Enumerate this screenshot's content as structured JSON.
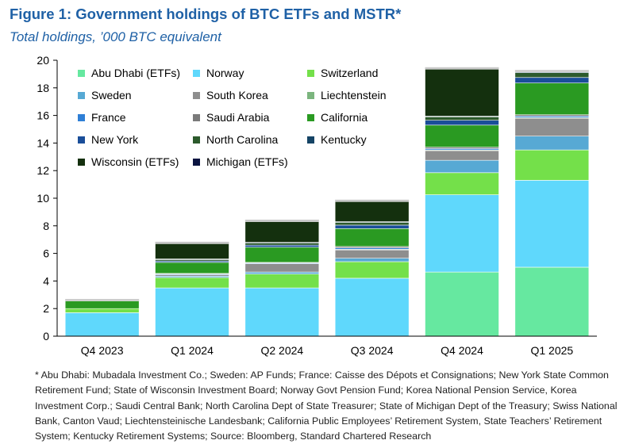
{
  "header": {
    "title": "Figure 1: Government holdings of BTC ETFs and MSTR*",
    "subtitle": "Total holdings, ’000 BTC equivalent"
  },
  "chart_data": {
    "type": "bar",
    "stacked": true,
    "categories": [
      "Q4 2023",
      "Q1 2024",
      "Q2 2024",
      "Q3 2024",
      "Q4 2024",
      "Q1 2025"
    ],
    "ylim": [
      0,
      20
    ],
    "yticks": [
      "0",
      "2",
      "4",
      "6",
      "8",
      "10",
      "12",
      "14",
      "16",
      "18",
      "20"
    ],
    "legend_position": "top-left, inside",
    "grid": false,
    "series": [
      {
        "name": "Abu Dhabi (ETFs)",
        "color": "#66e8a0",
        "values": [
          0,
          0,
          0,
          0,
          4.65,
          5.0
        ]
      },
      {
        "name": "Norway",
        "color": "#5fd8fc",
        "values": [
          1.7,
          3.5,
          3.5,
          4.2,
          5.6,
          6.3
        ]
      },
      {
        "name": "Switzerland",
        "color": "#74e04a",
        "values": [
          0.3,
          0.75,
          1.0,
          1.2,
          1.6,
          2.2
        ]
      },
      {
        "name": "Sweden",
        "color": "#57a9d4",
        "values": [
          0,
          0.1,
          0.15,
          0.25,
          0.9,
          1.0
        ]
      },
      {
        "name": "South Korea",
        "color": "#8e8e8e",
        "values": [
          0,
          0.1,
          0.6,
          0.6,
          0.7,
          1.3
        ]
      },
      {
        "name": "Liechtenstein",
        "color": "#7bb57e",
        "values": [
          0,
          0,
          0,
          0.05,
          0.05,
          0.05
        ]
      },
      {
        "name": "France",
        "color": "#2f7fd6",
        "values": [
          0,
          0.05,
          0.05,
          0.1,
          0.1,
          0.1
        ]
      },
      {
        "name": "Saudi Arabia",
        "color": "#7a7a7a",
        "values": [
          0,
          0.05,
          0.05,
          0.1,
          0.1,
          0.1
        ]
      },
      {
        "name": "California",
        "color": "#2a9a22",
        "values": [
          0.55,
          0.8,
          1.1,
          1.3,
          1.6,
          2.3
        ]
      },
      {
        "name": "New York",
        "color": "#1a4e99",
        "values": [
          0,
          0.1,
          0.15,
          0.25,
          0.35,
          0.4
        ]
      },
      {
        "name": "North Carolina",
        "color": "#2c5a2c",
        "values": [
          0,
          0.1,
          0.15,
          0.2,
          0.25,
          0.35
        ]
      },
      {
        "name": "Kentucky",
        "color": "#154465",
        "values": [
          0,
          0.05,
          0.05,
          0.05,
          0.05,
          0.05
        ]
      },
      {
        "name": "Wisconsin (ETFs)",
        "color": "#14300e",
        "values": [
          0,
          1.1,
          1.5,
          1.45,
          3.4,
          0
        ]
      },
      {
        "name": "Michigan (ETFs)",
        "color": "#0b1440",
        "values": [
          0,
          0,
          0,
          0,
          0,
          0
        ]
      }
    ]
  },
  "footnote": "* Abu Dhabi: Mubadala Investment Co.; Sweden: AP Funds; France: Caisse des Dépots et Consignations; New York State Common Retirement Fund; State of Wisconsin Investment Board; Norway Govt Pension Fund; Korea National Pension Service, Korea Investment Corp.; Saudi Central Bank; North Carolina Dept of State Treasurer; State of Michigan Dept of the Treasury; Swiss National Bank, Canton Vaud; Liechtensteinische Landesbank; California Public Employees’ Retirement System, State Teachers’ Retirement System; Kentucky Retirement Systems; Source: Bloomberg, Standard Chartered Research"
}
